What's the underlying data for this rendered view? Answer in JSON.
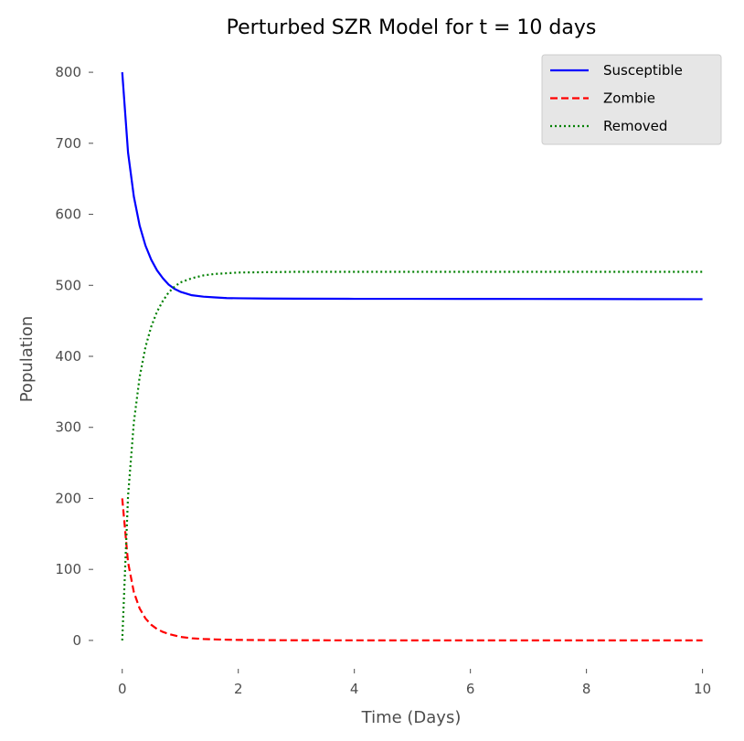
{
  "chart_data": {
    "type": "line",
    "title": "Perturbed SZR Model for t = 10 days",
    "xlabel": "Time (Days)",
    "ylabel": "Population",
    "xlim": [
      -0.5,
      10.4
    ],
    "ylim": [
      -40,
      840
    ],
    "xticks": [
      0,
      2,
      4,
      6,
      8,
      10
    ],
    "yticks": [
      0,
      100,
      200,
      300,
      400,
      500,
      600,
      700,
      800
    ],
    "grid": false,
    "legend_position": "top-right",
    "x": [
      0,
      0.1,
      0.2,
      0.3,
      0.4,
      0.5,
      0.6,
      0.7,
      0.8,
      0.9,
      1.0,
      1.2,
      1.4,
      1.6,
      1.8,
      2.0,
      2.5,
      3.0,
      4.0,
      5.0,
      6.0,
      7.0,
      8.0,
      9.0,
      10.0
    ],
    "series": [
      {
        "name": "Susceptible",
        "color": "#0000ff",
        "linestyle": "solid",
        "values": [
          800,
          687,
          625,
          584,
          556,
          536,
          521,
          510,
          501,
          495,
          491,
          486,
          484,
          483,
          482,
          481.8,
          481.4,
          481.2,
          481,
          481,
          480.9,
          480.8,
          480.7,
          480.6,
          480.5
        ]
      },
      {
        "name": "Zombie",
        "color": "#ff0000",
        "linestyle": "dashed",
        "values": [
          200,
          110,
          68,
          45,
          31,
          22,
          16,
          12,
          9,
          7,
          5,
          3,
          2,
          1.4,
          1,
          0.7,
          0.4,
          0.2,
          0.1,
          0.05,
          0,
          0,
          0,
          0,
          0
        ]
      },
      {
        "name": "Removed",
        "color": "#008000",
        "linestyle": "dotted",
        "values": [
          0,
          203,
          307,
          371,
          413,
          442,
          463,
          478,
          490,
          498,
          504,
          510,
          514,
          516,
          517,
          518,
          518.5,
          519,
          519,
          519,
          519,
          519,
          519,
          519,
          519
        ]
      }
    ]
  }
}
